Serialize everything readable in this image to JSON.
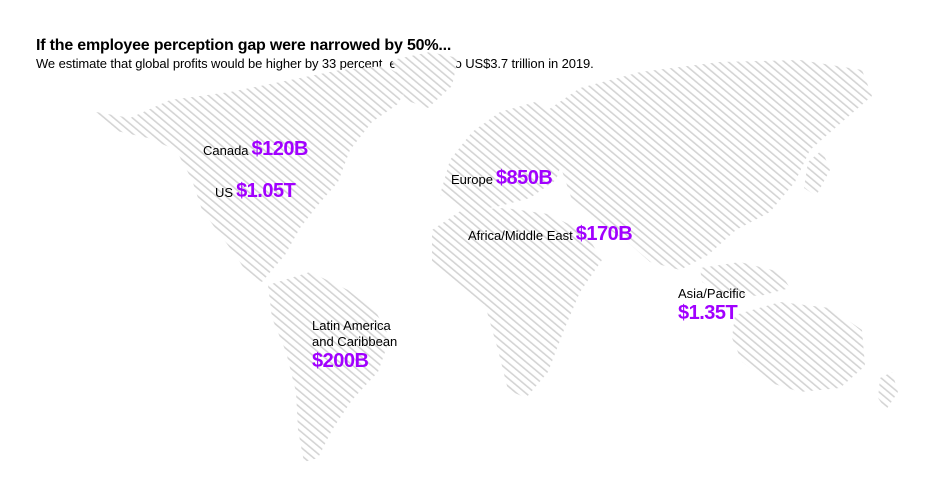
{
  "title": "If the employee perception gap were narrowed by 50%...",
  "subtitle": "We estimate that global profits would be higher by 33 percent, equivalent to US$3.7 trillion in 2019.",
  "accent_color": "#a100ff",
  "map_color": "#d4d4d4",
  "regions": {
    "canada": {
      "label": "Canada",
      "value": "$120B"
    },
    "us": {
      "label": "US",
      "value": "$1.05T"
    },
    "europe": {
      "label": "Europe",
      "value": "$850B"
    },
    "africa_me": {
      "label": "Africa/Middle East",
      "value": "$170B"
    },
    "asia_pacific": {
      "label": "Asia/Pacific",
      "value": "$1.35T"
    },
    "latam": {
      "label_line1": "Latin America",
      "label_line2": "and Caribbean",
      "value": "$200B"
    }
  }
}
